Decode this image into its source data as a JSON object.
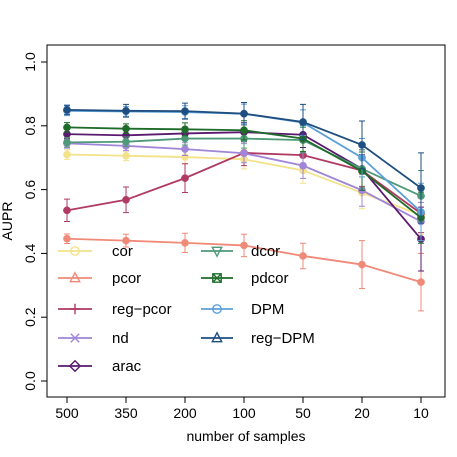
{
  "chart_data": {
    "type": "line",
    "title": "",
    "xlabel": "number of samples",
    "ylabel": "AUPR",
    "categories": [
      "500",
      "350",
      "200",
      "100",
      "50",
      "20",
      "10"
    ],
    "ylim": [
      0,
      1
    ],
    "yticks": [
      "0.0",
      "0.2",
      "0.4",
      "0.6",
      "0.8",
      "1.0"
    ],
    "grid": false,
    "legend_position": "bottom-left",
    "series": [
      {
        "name": "cor",
        "color": "#F2E28A",
        "marker": "circle-open",
        "values": [
          0.71,
          0.706,
          0.702,
          0.695,
          0.66,
          0.59,
          0.52
        ],
        "err": [
          0.015,
          0.015,
          0.02,
          0.03,
          0.04,
          0.05,
          0.06
        ]
      },
      {
        "name": "pcor",
        "color": "#F08A78",
        "marker": "triangle-open",
        "values": [
          0.446,
          0.44,
          0.433,
          0.425,
          0.392,
          0.365,
          0.31
        ],
        "err": [
          0.015,
          0.02,
          0.03,
          0.035,
          0.04,
          0.075,
          0.09
        ]
      },
      {
        "name": "reg−pcor",
        "color": "#B03A62",
        "marker": "plus",
        "values": [
          0.535,
          0.568,
          0.636,
          0.715,
          0.708,
          0.66,
          0.525
        ],
        "err": [
          0.035,
          0.04,
          0.045,
          0.04,
          0.04,
          0.05,
          0.06
        ]
      },
      {
        "name": "nd",
        "color": "#A085D8",
        "marker": "x",
        "values": [
          0.745,
          0.737,
          0.727,
          0.714,
          0.675,
          0.598,
          0.5
        ],
        "err": [
          0.015,
          0.015,
          0.02,
          0.03,
          0.04,
          0.05,
          0.06
        ]
      },
      {
        "name": "arac",
        "color": "#5A1A6E",
        "marker": "diamond-open",
        "values": [
          0.774,
          0.77,
          0.776,
          0.78,
          0.772,
          0.665,
          0.445
        ],
        "err": [
          0.015,
          0.015,
          0.02,
          0.03,
          0.04,
          0.06,
          0.1
        ]
      },
      {
        "name": "dcor",
        "color": "#4E9A78",
        "marker": "triangle-down-open",
        "values": [
          0.748,
          0.75,
          0.76,
          0.76,
          0.755,
          0.665,
          0.58
        ],
        "err": [
          0.015,
          0.015,
          0.02,
          0.03,
          0.04,
          0.06,
          0.08
        ]
      },
      {
        "name": "pdcor",
        "color": "#1E6B2A",
        "marker": "square-x",
        "values": [
          0.795,
          0.791,
          0.789,
          0.786,
          0.76,
          0.658,
          0.512
        ],
        "err": [
          0.015,
          0.015,
          0.02,
          0.03,
          0.04,
          0.06,
          0.08
        ]
      },
      {
        "name": "DPM",
        "color": "#5BA0D8",
        "marker": "circle-open",
        "values": [
          0.847,
          0.845,
          0.843,
          0.838,
          0.81,
          0.7,
          0.53
        ],
        "err": [
          0.015,
          0.015,
          0.02,
          0.03,
          0.04,
          0.06,
          0.09
        ]
      },
      {
        "name": "reg−DPM",
        "color": "#1F4E80",
        "marker": "triangle-open",
        "values": [
          0.85,
          0.847,
          0.846,
          0.838,
          0.812,
          0.74,
          0.605
        ],
        "err": [
          0.015,
          0.02,
          0.025,
          0.035,
          0.055,
          0.075,
          0.11
        ]
      }
    ]
  }
}
